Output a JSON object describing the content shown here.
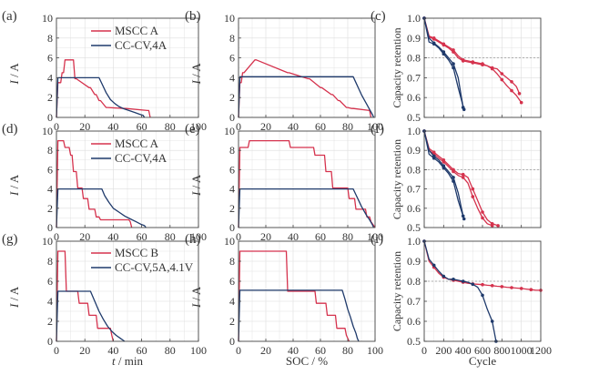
{
  "colors": {
    "red": "#d5324d",
    "navy": "#1f3a6b",
    "grid": "#dddddd",
    "axis": "#444444",
    "dotted": "#999999"
  },
  "x_axis_labels": {
    "time": "t / min",
    "soc": "SOC / %",
    "cycle": "Cycle"
  },
  "chart_data": [
    {
      "panel": "(a)",
      "type": "line",
      "xlabel": "t / min",
      "ylabel": "I / A",
      "xlim": [
        0,
        100
      ],
      "ylim": [
        0,
        10
      ],
      "xticks": [
        "0",
        "20",
        "40",
        "60",
        "80",
        "100"
      ],
      "yticks": [
        "0",
        "2",
        "4",
        "6",
        "8",
        "10"
      ],
      "grid": true,
      "legend": "top-center",
      "series": [
        {
          "name": "MSCC A",
          "color": "red",
          "step": true,
          "x": [
            0,
            1,
            3,
            4,
            5,
            6,
            12,
            13,
            14,
            23,
            24,
            27,
            28,
            30,
            31,
            35,
            36,
            48,
            49,
            64,
            65,
            66
          ],
          "y": [
            0,
            3.5,
            3.5,
            4.5,
            4.5,
            5.8,
            5.8,
            3.9,
            3.9,
            3.0,
            3.0,
            2.3,
            2.3,
            1.7,
            1.7,
            1.0,
            1.0,
            0.9,
            0.9,
            0.7,
            0.7,
            0
          ]
        },
        {
          "name": "CC-CV,4A",
          "color": "navy",
          "step": false,
          "x": [
            0,
            1,
            30,
            32,
            35,
            38,
            41,
            44,
            47,
            51,
            55,
            59,
            61,
            62
          ],
          "y": [
            0,
            4,
            4,
            3.4,
            2.5,
            1.8,
            1.4,
            1.1,
            0.9,
            0.7,
            0.5,
            0.3,
            0.2,
            0
          ]
        }
      ]
    },
    {
      "panel": "(b)",
      "type": "line",
      "xlabel": "SOC / %",
      "ylabel": "I / A",
      "xlim": [
        0,
        100
      ],
      "ylim": [
        0,
        10
      ],
      "xticks": [
        "0",
        "20",
        "40",
        "60",
        "80",
        "100"
      ],
      "yticks": [
        "0",
        "2",
        "4",
        "6",
        "8",
        "10"
      ],
      "grid": true,
      "legend": "none",
      "series": [
        {
          "name": "MSCC A",
          "color": "red",
          "step": true,
          "x": [
            0,
            1,
            2,
            3,
            4,
            12,
            13,
            36,
            37,
            51,
            52,
            60,
            61,
            68,
            69,
            73,
            74,
            79,
            80,
            83,
            84,
            96,
            97
          ],
          "y": [
            0,
            3.5,
            3.5,
            4.5,
            4.5,
            5.8,
            5.8,
            4.5,
            4.5,
            3.9,
            3.9,
            3.0,
            3.0,
            2.3,
            2.3,
            1.7,
            1.7,
            1.0,
            1.0,
            0.9,
            0.9,
            0.7,
            0
          ]
        },
        {
          "name": "CC-CV,4A",
          "color": "navy",
          "step": false,
          "x": [
            0,
            1,
            84,
            86,
            88,
            90,
            92,
            94,
            96,
            98,
            99
          ],
          "y": [
            0,
            4.1,
            4.1,
            3.5,
            2.9,
            2.3,
            1.8,
            1.3,
            0.8,
            0.3,
            0
          ]
        }
      ]
    },
    {
      "panel": "(c)",
      "type": "line",
      "xlabel": "",
      "ylabel": "Capacity retention",
      "xlim": [
        0,
        1200
      ],
      "ylim": [
        0.5,
        1.0
      ],
      "xticks": [
        "",
        "",
        "",
        "",
        "",
        "",
        ""
      ],
      "yticks": [
        "0.5",
        "0.6",
        "0.7",
        "0.8",
        "0.9",
        "1.0"
      ],
      "grid": true,
      "legend": "none",
      "reference_y": 0.8,
      "series": [
        {
          "color": "red",
          "x": [
            0,
            50,
            100,
            150,
            200,
            250,
            300,
            350,
            400,
            450,
            500,
            550,
            600,
            650,
            700,
            750,
            800,
            850,
            900,
            950,
            980
          ],
          "y": [
            1.0,
            0.91,
            0.9,
            0.885,
            0.87,
            0.855,
            0.84,
            0.81,
            0.79,
            0.785,
            0.78,
            0.775,
            0.77,
            0.76,
            0.75,
            0.745,
            0.72,
            0.7,
            0.68,
            0.655,
            0.62
          ]
        },
        {
          "color": "red",
          "x": [
            0,
            50,
            100,
            150,
            200,
            250,
            300,
            350,
            400,
            450,
            500,
            550,
            600,
            650,
            700,
            750,
            800,
            850,
            900,
            950,
            1000
          ],
          "y": [
            1.0,
            0.905,
            0.895,
            0.88,
            0.865,
            0.85,
            0.83,
            0.8,
            0.785,
            0.78,
            0.775,
            0.77,
            0.765,
            0.76,
            0.745,
            0.72,
            0.69,
            0.66,
            0.635,
            0.61,
            0.575
          ]
        },
        {
          "color": "navy",
          "x": [
            0,
            50,
            100,
            150,
            200,
            250,
            300,
            350,
            400
          ],
          "y": [
            1.0,
            0.9,
            0.875,
            0.855,
            0.83,
            0.8,
            0.77,
            0.7,
            0.55
          ]
        },
        {
          "color": "navy",
          "x": [
            0,
            50,
            100,
            150,
            200,
            250,
            300,
            350,
            410
          ],
          "y": [
            1.0,
            0.88,
            0.87,
            0.85,
            0.82,
            0.79,
            0.75,
            0.65,
            0.54
          ]
        }
      ]
    },
    {
      "panel": "(d)",
      "type": "line",
      "xlabel": "t / min",
      "ylabel": "I / A",
      "xlim": [
        0,
        100
      ],
      "ylim": [
        0,
        10
      ],
      "xticks": [
        "0",
        "20",
        "40",
        "60",
        "80",
        "100"
      ],
      "yticks": [
        "0",
        "2",
        "4",
        "6",
        "8",
        "10"
      ],
      "grid": true,
      "legend": "top-center",
      "series": [
        {
          "name": "MSCC A",
          "color": "red",
          "step": true,
          "x": [
            0,
            1,
            5,
            6,
            9,
            10,
            11,
            12,
            14,
            15,
            18,
            19,
            22,
            23,
            27,
            28,
            30,
            31,
            51,
            52,
            53
          ],
          "y": [
            0,
            9.0,
            9.0,
            8.3,
            8.3,
            7.5,
            7.5,
            5.8,
            5.8,
            4.1,
            4.1,
            3.0,
            3.0,
            1.9,
            1.9,
            1.1,
            1.1,
            0.8,
            0.8,
            0.6,
            0
          ]
        },
        {
          "name": "CC-CV,4A",
          "color": "navy",
          "step": false,
          "x": [
            0,
            1,
            32,
            34,
            37,
            40,
            44,
            48,
            52,
            56,
            60,
            62,
            63
          ],
          "y": [
            0,
            4,
            4,
            3.3,
            2.6,
            2.0,
            1.6,
            1.2,
            0.9,
            0.6,
            0.3,
            0.2,
            0
          ]
        }
      ]
    },
    {
      "panel": "(e)",
      "type": "line",
      "xlabel": "SOC / %",
      "ylabel": "I / A",
      "xlim": [
        0,
        100
      ],
      "ylim": [
        0,
        10
      ],
      "xticks": [
        "0",
        "20",
        "40",
        "60",
        "80",
        "100"
      ],
      "yticks": [
        "0",
        "2",
        "4",
        "6",
        "8",
        "10"
      ],
      "grid": true,
      "legend": "none",
      "series": [
        {
          "name": "MSCC A",
          "color": "red",
          "step": true,
          "x": [
            0,
            1,
            7,
            8,
            37,
            38,
            55,
            56,
            63,
            64,
            68,
            69,
            80,
            81,
            85,
            86,
            93,
            94,
            96,
            97,
            100
          ],
          "y": [
            0,
            8.3,
            8.3,
            9.0,
            9.0,
            8.3,
            8.3,
            7.5,
            7.5,
            5.8,
            5.8,
            4.1,
            4.1,
            3.0,
            3.0,
            1.9,
            1.9,
            1.1,
            1.1,
            0.6,
            0
          ]
        },
        {
          "name": "CC-CV,4A",
          "color": "navy",
          "step": false,
          "x": [
            0,
            1,
            84,
            86,
            88,
            90,
            92,
            94,
            96,
            98,
            99
          ],
          "y": [
            0,
            4,
            4,
            3.4,
            2.8,
            2.2,
            1.7,
            1.2,
            0.8,
            0.3,
            0
          ]
        }
      ]
    },
    {
      "panel": "(f)",
      "type": "line",
      "xlabel": "",
      "ylabel": "Capacity retention",
      "xlim": [
        0,
        1200
      ],
      "ylim": [
        0.5,
        1.0
      ],
      "xticks": [
        "",
        "",
        "",
        "",
        "",
        "",
        ""
      ],
      "yticks": [
        "0.5",
        "0.6",
        "0.7",
        "0.8",
        "0.9",
        "1.0"
      ],
      "grid": true,
      "legend": "none",
      "reference_y": 0.8,
      "series": [
        {
          "color": "red",
          "x": [
            0,
            50,
            100,
            150,
            200,
            250,
            300,
            350,
            400,
            450,
            500,
            550,
            600,
            650,
            700,
            760
          ],
          "y": [
            1.0,
            0.91,
            0.89,
            0.87,
            0.85,
            0.825,
            0.8,
            0.78,
            0.775,
            0.76,
            0.7,
            0.64,
            0.58,
            0.54,
            0.52,
            0.51
          ]
        },
        {
          "color": "red",
          "x": [
            0,
            50,
            100,
            150,
            200,
            250,
            300,
            350,
            400,
            450,
            500,
            550,
            600,
            650,
            700
          ],
          "y": [
            1.0,
            0.9,
            0.88,
            0.86,
            0.84,
            0.815,
            0.79,
            0.77,
            0.76,
            0.73,
            0.66,
            0.6,
            0.55,
            0.52,
            0.51
          ]
        },
        {
          "color": "navy",
          "x": [
            0,
            50,
            100,
            150,
            200,
            250,
            300,
            350,
            400
          ],
          "y": [
            1.0,
            0.9,
            0.87,
            0.85,
            0.82,
            0.79,
            0.76,
            0.68,
            0.56
          ]
        },
        {
          "color": "navy",
          "x": [
            0,
            50,
            100,
            150,
            200,
            250,
            300,
            350,
            410
          ],
          "y": [
            1.0,
            0.88,
            0.86,
            0.84,
            0.81,
            0.78,
            0.74,
            0.64,
            0.545
          ]
        }
      ]
    },
    {
      "panel": "(g)",
      "type": "line",
      "xlabel": "t / min",
      "ylabel": "I / A",
      "xlim": [
        0,
        100
      ],
      "ylim": [
        0,
        10
      ],
      "xticks": [
        "0",
        "20",
        "40",
        "60",
        "80",
        "100"
      ],
      "yticks": [
        "0",
        "2",
        "4",
        "6",
        "8",
        "10"
      ],
      "grid": true,
      "legend": "top-center",
      "series": [
        {
          "name": "MSCC B",
          "color": "red",
          "step": true,
          "x": [
            0,
            1,
            6,
            7,
            15,
            16,
            22,
            23,
            28,
            29,
            38,
            39,
            40
          ],
          "y": [
            0,
            9.0,
            9.0,
            5.0,
            5.0,
            3.8,
            3.8,
            2.6,
            2.6,
            1.3,
            1.3,
            0.6,
            0
          ]
        },
        {
          "name": "CC-CV,5A,4.1V",
          "color": "navy",
          "step": false,
          "x": [
            0,
            1,
            24,
            27,
            30,
            33,
            36,
            39,
            42,
            45,
            47,
            48
          ],
          "y": [
            0,
            5,
            5,
            4.0,
            3.0,
            2.2,
            1.5,
            1.0,
            0.6,
            0.3,
            0.1,
            0
          ]
        }
      ]
    },
    {
      "panel": "(h)",
      "type": "line",
      "xlabel": "SOC / %",
      "ylabel": "I / A",
      "xlim": [
        0,
        100
      ],
      "ylim": [
        0,
        10
      ],
      "xticks": [
        "0",
        "20",
        "40",
        "60",
        "80",
        "100"
      ],
      "yticks": [
        "0",
        "2",
        "4",
        "6",
        "8",
        "10"
      ],
      "grid": true,
      "legend": "none",
      "series": [
        {
          "name": "MSCC B",
          "color": "red",
          "step": true,
          "x": [
            0,
            1,
            35,
            36,
            56,
            57,
            64,
            65,
            71,
            72,
            78,
            79,
            81
          ],
          "y": [
            0,
            9.0,
            9.0,
            5.0,
            5.0,
            3.8,
            3.8,
            2.6,
            2.6,
            1.3,
            1.3,
            0.6,
            0
          ]
        },
        {
          "name": "CC-CV,5A,4.1V",
          "color": "navy",
          "step": false,
          "x": [
            0,
            1,
            76,
            78,
            80,
            82,
            84,
            86,
            87,
            88
          ],
          "y": [
            0,
            5.1,
            5.1,
            4.2,
            3.2,
            2.4,
            1.5,
            0.8,
            0.3,
            0
          ]
        }
      ]
    },
    {
      "panel": "(i)",
      "type": "line",
      "xlabel": "Cycle",
      "ylabel": "Capacity retention",
      "xlim": [
        0,
        1200
      ],
      "ylim": [
        0.5,
        1.0
      ],
      "xticks": [
        "0",
        "200",
        "400",
        "600",
        "800",
        "1000",
        "1200"
      ],
      "yticks": [
        "0.5",
        "0.6",
        "0.7",
        "0.8",
        "0.9",
        "1.0"
      ],
      "grid": true,
      "legend": "none",
      "reference_y": 0.8,
      "series": [
        {
          "color": "red",
          "x": [
            0,
            50,
            100,
            150,
            200,
            250,
            300,
            350,
            400,
            450,
            500,
            550,
            600,
            650,
            700,
            750,
            800,
            850,
            900,
            950,
            1000,
            1050,
            1100,
            1150,
            1200
          ],
          "y": [
            1.0,
            0.9,
            0.87,
            0.84,
            0.82,
            0.81,
            0.805,
            0.8,
            0.795,
            0.79,
            0.787,
            0.785,
            0.783,
            0.78,
            0.778,
            0.775,
            0.773,
            0.77,
            0.768,
            0.766,
            0.764,
            0.761,
            0.758,
            0.755,
            0.755
          ]
        },
        {
          "color": "navy",
          "x": [
            0,
            50,
            100,
            150,
            200,
            250,
            300,
            350,
            400,
            450,
            500,
            550,
            600,
            650,
            700,
            740
          ],
          "y": [
            1.0,
            0.91,
            0.88,
            0.85,
            0.825,
            0.81,
            0.81,
            0.805,
            0.8,
            0.795,
            0.785,
            0.77,
            0.73,
            0.66,
            0.6,
            0.5
          ]
        }
      ]
    }
  ]
}
